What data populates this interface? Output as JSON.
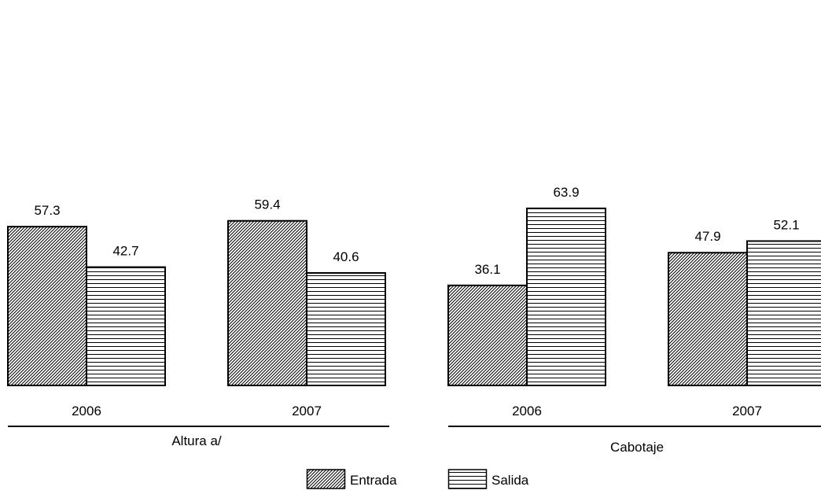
{
  "chart_data": {
    "type": "bar",
    "title": "",
    "xlabel": "",
    "ylabel": "",
    "ylim": [
      0,
      72
    ],
    "grid": false,
    "legend_position": "bottom-center",
    "series": [
      {
        "name": "Entrada",
        "pattern": "diagonal"
      },
      {
        "name": "Salida",
        "pattern": "horizontal"
      }
    ],
    "groups": [
      {
        "label": "Altura a/",
        "years": [
          {
            "label": "2006",
            "values": [
              57.3,
              42.7
            ]
          },
          {
            "label": "2007",
            "values": [
              59.4,
              40.6
            ]
          }
        ]
      },
      {
        "label": "Cabotaje",
        "years": [
          {
            "label": "2006",
            "values": [
              36.1,
              63.9
            ]
          },
          {
            "label": "2007",
            "values": [
              47.9,
              52.1
            ]
          }
        ]
      }
    ],
    "colors": {
      "stroke": "#000000",
      "background": "#ffffff"
    }
  }
}
